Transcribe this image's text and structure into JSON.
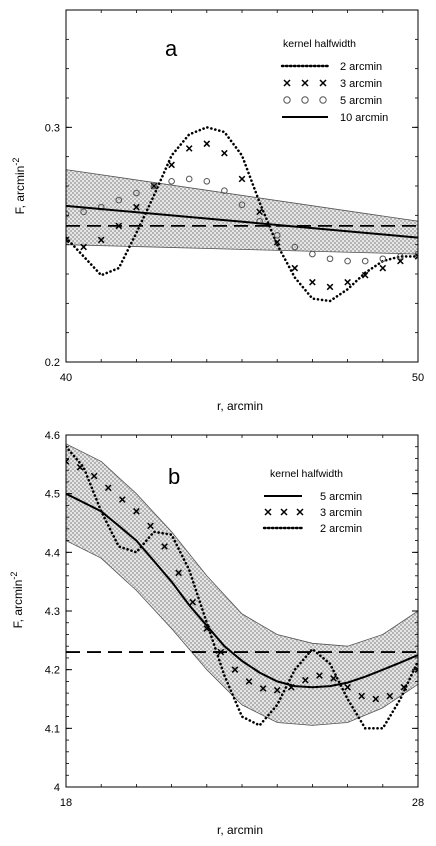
{
  "chart_data": [
    {
      "type": "line",
      "panel": "a",
      "xlabel": "r, arcmin",
      "ylabel": "F, arcmin",
      "ylabel_sup": "-2",
      "xlim": [
        40,
        50
      ],
      "ylim": [
        0.2,
        0.35
      ],
      "xticks": [
        "40",
        "50"
      ],
      "yticks": [
        {
          "v": 0.3,
          "label": "0.3"
        },
        {
          "v": 0.2,
          "label": "0.2"
        }
      ],
      "legend_title": "kernel halfwidth",
      "legend_position": "top-right",
      "dashed_reference": 0.258,
      "band": {
        "x": [
          40,
          50
        ],
        "upper": [
          0.282,
          0.26
        ],
        "lower": [
          0.25,
          0.246
        ]
      },
      "series": [
        {
          "name": "2 arcmin",
          "style": "dotted",
          "x": [
            40,
            40.5,
            41,
            41.5,
            42,
            42.5,
            43,
            43.5,
            44,
            44.5,
            45,
            45.5,
            46,
            46.5,
            47,
            47.5,
            48,
            48.5,
            49,
            49.5,
            50
          ],
          "y": [
            0.253,
            0.245,
            0.237,
            0.24,
            0.255,
            0.271,
            0.288,
            0.297,
            0.3,
            0.298,
            0.288,
            0.268,
            0.25,
            0.236,
            0.227,
            0.226,
            0.231,
            0.238,
            0.243,
            0.245,
            0.245
          ]
        },
        {
          "name": "3 arcmin",
          "style": "x",
          "x": [
            40,
            40.5,
            41,
            41.5,
            42,
            42.5,
            43,
            43.5,
            44,
            44.5,
            45,
            45.5,
            46,
            46.5,
            47,
            47.5,
            48,
            48.5,
            49,
            49.5,
            50
          ],
          "y": [
            0.252,
            0.249,
            0.252,
            0.258,
            0.266,
            0.275,
            0.284,
            0.291,
            0.293,
            0.289,
            0.278,
            0.264,
            0.251,
            0.24,
            0.234,
            0.232,
            0.234,
            0.237,
            0.24,
            0.243,
            0.245
          ]
        },
        {
          "name": "5 arcmin",
          "style": "o",
          "x": [
            40,
            40.5,
            41,
            41.5,
            42,
            42.5,
            43,
            43.5,
            44,
            44.5,
            45,
            45.5,
            46,
            46.5,
            47,
            47.5,
            48,
            48.5,
            49,
            49.5,
            50
          ],
          "y": [
            0.263,
            0.264,
            0.266,
            0.269,
            0.272,
            0.275,
            0.277,
            0.278,
            0.277,
            0.273,
            0.267,
            0.26,
            0.254,
            0.249,
            0.246,
            0.244,
            0.243,
            0.243,
            0.244,
            0.245,
            0.246
          ]
        },
        {
          "name": "10 arcmin",
          "style": "solid",
          "x": [
            40,
            50
          ],
          "y": [
            0.2665,
            0.253
          ]
        }
      ]
    },
    {
      "type": "line",
      "panel": "b",
      "xlabel": "r, arcmin",
      "ylabel": "F, arcmin",
      "ylabel_sup": "-2",
      "xlim": [
        18,
        28
      ],
      "ylim": [
        4,
        4.6
      ],
      "xticks": [
        "18",
        "28"
      ],
      "yticks": [
        {
          "v": 4.6,
          "label": "4.6"
        },
        {
          "v": 4.5,
          "label": "4.5"
        },
        {
          "v": 4.4,
          "label": "4.4"
        },
        {
          "v": 4.3,
          "label": "4.3"
        },
        {
          "v": 4.2,
          "label": "4.2"
        },
        {
          "v": 4.1,
          "label": "4.1"
        },
        {
          "v": 4.0,
          "label": "4"
        }
      ],
      "legend_title": "kernel halfwidth",
      "legend_position": "top-right",
      "dashed_reference": 4.23,
      "band": {
        "x": [
          18,
          19,
          20,
          21,
          22,
          23,
          24,
          25,
          26,
          27,
          28
        ],
        "upper": [
          4.585,
          4.555,
          4.5,
          4.435,
          4.36,
          4.295,
          4.26,
          4.245,
          4.24,
          4.26,
          4.3
        ],
        "lower": [
          4.42,
          4.39,
          4.335,
          4.27,
          4.2,
          4.14,
          4.11,
          4.105,
          4.11,
          4.135,
          4.175
        ]
      },
      "series": [
        {
          "name": "5 arcmin",
          "style": "solid",
          "x": [
            18,
            18.5,
            19,
            19.5,
            20,
            20.5,
            21,
            21.5,
            22,
            22.5,
            23,
            23.5,
            24,
            24.5,
            25,
            25.5,
            26,
            26.5,
            27,
            27.5,
            28
          ],
          "y": [
            4.5,
            4.485,
            4.47,
            4.445,
            4.42,
            4.385,
            4.35,
            4.31,
            4.275,
            4.24,
            4.215,
            4.195,
            4.18,
            4.172,
            4.17,
            4.172,
            4.178,
            4.188,
            4.2,
            4.212,
            4.225
          ]
        },
        {
          "name": "3 arcmin",
          "style": "x",
          "x": [
            18,
            18.4,
            18.8,
            19.2,
            19.6,
            20,
            20.4,
            20.8,
            21.2,
            21.6,
            22,
            22.4,
            22.8,
            23.2,
            23.6,
            24,
            24.4,
            24.8,
            25.2,
            25.6,
            26,
            26.4,
            26.8,
            27.2,
            27.6,
            28
          ],
          "y": [
            4.555,
            4.545,
            4.53,
            4.51,
            4.49,
            4.47,
            4.445,
            4.41,
            4.365,
            4.315,
            4.27,
            4.23,
            4.2,
            4.18,
            4.168,
            4.165,
            4.17,
            4.182,
            4.19,
            4.185,
            4.17,
            4.155,
            4.15,
            4.155,
            4.17,
            4.2
          ]
        },
        {
          "name": "2 arcmin",
          "style": "dotted",
          "x": [
            18,
            18.5,
            19,
            19.5,
            20,
            20.5,
            21,
            21.5,
            22,
            22.5,
            23,
            23.5,
            24,
            24.5,
            25,
            25.5,
            26,
            26.5,
            27,
            27.5,
            28
          ],
          "y": [
            4.58,
            4.545,
            4.47,
            4.41,
            4.4,
            4.435,
            4.43,
            4.37,
            4.28,
            4.19,
            4.12,
            4.105,
            4.14,
            4.2,
            4.235,
            4.21,
            4.15,
            4.1,
            4.1,
            4.15,
            4.215
          ]
        }
      ]
    }
  ]
}
